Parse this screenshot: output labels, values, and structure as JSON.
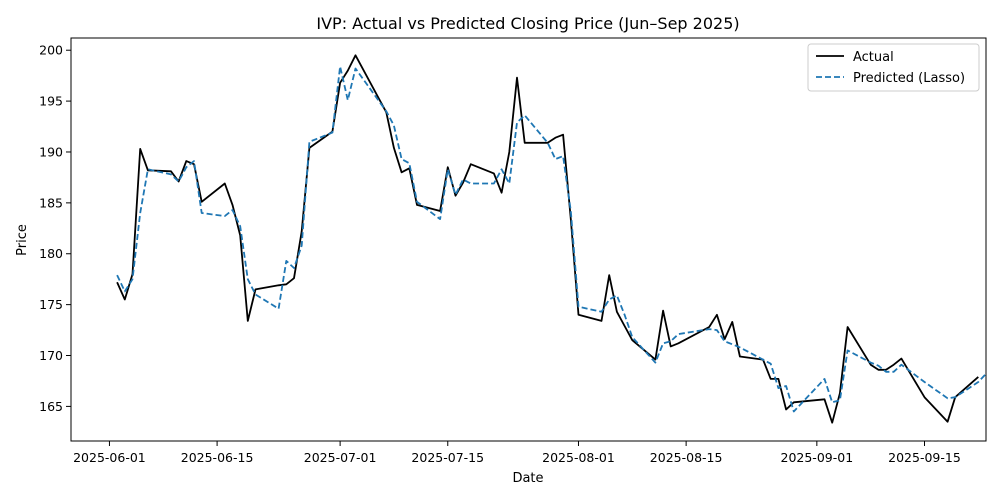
{
  "chart_data": {
    "type": "line",
    "title": "IVP: Actual vs Predicted Closing Price (Jun–Sep 2025)",
    "xlabel": "Date",
    "ylabel": "Price",
    "x_ticks": [
      "2025-06-01",
      "2025-06-15",
      "2025-07-01",
      "2025-07-15",
      "2025-08-01",
      "2025-08-15",
      "2025-09-01",
      "2025-09-15"
    ],
    "y_ticks": [
      165,
      170,
      175,
      180,
      185,
      190,
      195,
      200
    ],
    "xlim": [
      "2025-05-27",
      "2025-09-23"
    ],
    "ylim": [
      161.6,
      201.2
    ],
    "grid": false,
    "legend_position": "top-right",
    "series": [
      {
        "name": "Actual",
        "color": "#000000",
        "style": "solid",
        "points": [
          [
            "2025-06-02",
            177.2
          ],
          [
            "2025-06-03",
            175.5
          ],
          [
            "2025-06-04",
            178.0
          ],
          [
            "2025-06-05",
            190.3
          ],
          [
            "2025-06-06",
            188.2
          ],
          [
            "2025-06-09",
            188.1
          ],
          [
            "2025-06-10",
            187.1
          ],
          [
            "2025-06-11",
            189.1
          ],
          [
            "2025-06-12",
            188.8
          ],
          [
            "2025-06-13",
            185.1
          ],
          [
            "2025-06-16",
            186.9
          ],
          [
            "2025-06-17",
            184.8
          ],
          [
            "2025-06-18",
            181.8
          ],
          [
            "2025-06-19",
            173.4
          ],
          [
            "2025-06-20",
            176.5
          ],
          [
            "2025-06-23",
            176.9
          ],
          [
            "2025-06-24",
            177.0
          ],
          [
            "2025-06-25",
            177.6
          ],
          [
            "2025-06-26",
            182.2
          ],
          [
            "2025-06-27",
            190.4
          ],
          [
            "2025-06-30",
            192.0
          ],
          [
            "2025-07-01",
            196.8
          ],
          [
            "2025-07-02",
            198.0
          ],
          [
            "2025-07-03",
            199.5
          ],
          [
            "2025-07-07",
            193.9
          ],
          [
            "2025-07-08",
            190.4
          ],
          [
            "2025-07-09",
            188.0
          ],
          [
            "2025-07-10",
            188.4
          ],
          [
            "2025-07-11",
            184.8
          ],
          [
            "2025-07-14",
            184.2
          ],
          [
            "2025-07-15",
            188.5
          ],
          [
            "2025-07-16",
            185.7
          ],
          [
            "2025-07-17",
            187.0
          ],
          [
            "2025-07-18",
            188.8
          ],
          [
            "2025-07-21",
            187.9
          ],
          [
            "2025-07-22",
            186.0
          ],
          [
            "2025-07-23",
            190.0
          ],
          [
            "2025-07-24",
            197.3
          ],
          [
            "2025-07-25",
            190.9
          ],
          [
            "2025-07-28",
            190.9
          ],
          [
            "2025-07-29",
            191.4
          ],
          [
            "2025-07-30",
            191.7
          ],
          [
            "2025-07-31",
            183.4
          ],
          [
            "2025-08-01",
            174.0
          ],
          [
            "2025-08-04",
            173.4
          ],
          [
            "2025-08-05",
            177.9
          ],
          [
            "2025-08-06",
            174.3
          ],
          [
            "2025-08-07",
            172.9
          ],
          [
            "2025-08-08",
            171.5
          ],
          [
            "2025-08-11",
            169.6
          ],
          [
            "2025-08-12",
            174.4
          ],
          [
            "2025-08-13",
            170.9
          ],
          [
            "2025-08-14",
            171.2
          ],
          [
            "2025-08-18",
            172.8
          ],
          [
            "2025-08-19",
            174.0
          ],
          [
            "2025-08-20",
            171.6
          ],
          [
            "2025-08-21",
            173.3
          ],
          [
            "2025-08-22",
            169.9
          ],
          [
            "2025-08-25",
            169.6
          ],
          [
            "2025-08-26",
            167.7
          ],
          [
            "2025-08-27",
            167.7
          ],
          [
            "2025-08-28",
            164.7
          ],
          [
            "2025-08-29",
            165.4
          ],
          [
            "2025-09-02",
            165.7
          ],
          [
            "2025-09-03",
            163.4
          ],
          [
            "2025-09-04",
            166.3
          ],
          [
            "2025-09-05",
            172.8
          ],
          [
            "2025-09-08",
            169.1
          ],
          [
            "2025-09-09",
            168.6
          ],
          [
            "2025-09-10",
            168.6
          ],
          [
            "2025-09-11",
            169.1
          ],
          [
            "2025-09-12",
            169.7
          ],
          [
            "2025-09-15",
            165.9
          ],
          [
            "2025-09-18",
            163.5
          ],
          [
            "2025-09-19",
            165.9
          ],
          [
            "2025-09-22",
            167.9
          ]
        ]
      },
      {
        "name": "Predicted (Lasso)",
        "color": "#1f77b4",
        "style": "dashed",
        "points": [
          [
            "2025-06-02",
            177.9
          ],
          [
            "2025-06-03",
            176.3
          ],
          [
            "2025-06-04",
            177.5
          ],
          [
            "2025-06-05",
            184.0
          ],
          [
            "2025-06-06",
            188.3
          ],
          [
            "2025-06-09",
            187.8
          ],
          [
            "2025-06-10",
            187.1
          ],
          [
            "2025-06-11",
            188.5
          ],
          [
            "2025-06-12",
            189.1
          ],
          [
            "2025-06-13",
            184.0
          ],
          [
            "2025-06-16",
            183.7
          ],
          [
            "2025-06-17",
            184.3
          ],
          [
            "2025-06-18",
            182.7
          ],
          [
            "2025-06-19",
            177.5
          ],
          [
            "2025-06-20",
            176.0
          ],
          [
            "2025-06-23",
            174.6
          ],
          [
            "2025-06-24",
            179.3
          ],
          [
            "2025-06-25",
            178.6
          ],
          [
            "2025-06-26",
            180.8
          ],
          [
            "2025-06-27",
            191.0
          ],
          [
            "2025-06-30",
            191.9
          ],
          [
            "2025-07-01",
            198.4
          ],
          [
            "2025-07-02",
            195.1
          ],
          [
            "2025-07-03",
            198.2
          ],
          [
            "2025-07-07",
            194.0
          ],
          [
            "2025-07-08",
            192.6
          ],
          [
            "2025-07-09",
            189.3
          ],
          [
            "2025-07-10",
            188.9
          ],
          [
            "2025-07-11",
            185.1
          ],
          [
            "2025-07-14",
            183.4
          ],
          [
            "2025-07-15",
            188.3
          ],
          [
            "2025-07-16",
            185.8
          ],
          [
            "2025-07-17",
            187.3
          ],
          [
            "2025-07-18",
            186.9
          ],
          [
            "2025-07-21",
            186.9
          ],
          [
            "2025-07-22",
            188.3
          ],
          [
            "2025-07-23",
            186.9
          ],
          [
            "2025-07-24",
            192.9
          ],
          [
            "2025-07-25",
            193.6
          ],
          [
            "2025-07-28",
            190.9
          ],
          [
            "2025-07-29",
            189.3
          ],
          [
            "2025-07-30",
            189.6
          ],
          [
            "2025-07-31",
            184.2
          ],
          [
            "2025-08-01",
            174.8
          ],
          [
            "2025-08-04",
            174.3
          ],
          [
            "2025-08-05",
            175.5
          ],
          [
            "2025-08-06",
            175.9
          ],
          [
            "2025-08-07",
            174.0
          ],
          [
            "2025-08-08",
            171.8
          ],
          [
            "2025-08-11",
            169.3
          ],
          [
            "2025-08-12",
            171.2
          ],
          [
            "2025-08-13",
            171.4
          ],
          [
            "2025-08-14",
            172.1
          ],
          [
            "2025-08-18",
            172.6
          ],
          [
            "2025-08-19",
            172.5
          ],
          [
            "2025-08-20",
            171.4
          ],
          [
            "2025-08-21",
            171.1
          ],
          [
            "2025-08-22",
            170.8
          ],
          [
            "2025-08-25",
            169.6
          ],
          [
            "2025-08-26",
            169.2
          ],
          [
            "2025-08-27",
            166.8
          ],
          [
            "2025-08-28",
            167.0
          ],
          [
            "2025-08-29",
            164.5
          ],
          [
            "2025-09-02",
            167.7
          ],
          [
            "2025-09-03",
            165.4
          ],
          [
            "2025-09-04",
            165.6
          ],
          [
            "2025-09-05",
            170.5
          ],
          [
            "2025-09-08",
            169.3
          ],
          [
            "2025-09-09",
            169.0
          ],
          [
            "2025-09-10",
            168.4
          ],
          [
            "2025-09-11",
            168.4
          ],
          [
            "2025-09-12",
            169.1
          ],
          [
            "2025-09-15",
            167.4
          ],
          [
            "2025-09-18",
            165.8
          ],
          [
            "2025-09-19",
            165.9
          ],
          [
            "2025-09-22",
            167.4
          ],
          [
            "2025-09-23",
            168.2
          ]
        ]
      }
    ]
  }
}
